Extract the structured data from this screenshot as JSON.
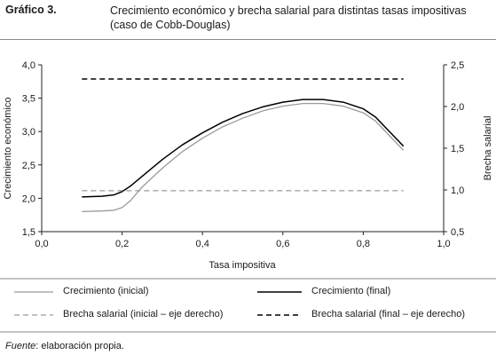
{
  "figure": {
    "label": "Gráfico 3.",
    "title_line1": "Crecimiento económico y brecha salarial para distintas tasas impositivas",
    "title_line2": "(caso de Cobb-Douglas)",
    "source_prefix": "Fuente",
    "source_text": ": elaboración propia."
  },
  "chart_data": {
    "type": "line",
    "xlabel": "Tasa impositiva",
    "ylabel_left": "Crecimiento económico",
    "ylabel_right": "Brecha salarial",
    "xlim": [
      0.0,
      1.0
    ],
    "ylim_left": [
      1.5,
      4.0
    ],
    "ylim_right": [
      0.5,
      2.5
    ],
    "x_ticks": [
      "0,0",
      "0,2",
      "0,4",
      "0,6",
      "0,8",
      "1,0"
    ],
    "y_ticks_left": [
      "1,5",
      "2,0",
      "2,5",
      "3,0",
      "3,5",
      "4,0"
    ],
    "y_ticks_right": [
      "0,5",
      "1,0",
      "1,5",
      "2,0",
      "2,5"
    ],
    "grid": false,
    "legend_position": "bottom",
    "series": [
      {
        "name": "Crecimiento (inicial)",
        "axis": "left",
        "style": "solid-gray",
        "color": "#9a9a9a",
        "x": [
          0.1,
          0.15,
          0.18,
          0.2,
          0.22,
          0.25,
          0.3,
          0.35,
          0.4,
          0.45,
          0.5,
          0.55,
          0.6,
          0.65,
          0.7,
          0.75,
          0.8,
          0.83,
          0.86,
          0.9
        ],
        "y": [
          1.8,
          1.81,
          1.82,
          1.86,
          1.96,
          2.17,
          2.45,
          2.7,
          2.9,
          3.07,
          3.2,
          3.31,
          3.38,
          3.42,
          3.42,
          3.38,
          3.28,
          3.16,
          2.97,
          2.72
        ]
      },
      {
        "name": "Crecimiento (final)",
        "axis": "left",
        "style": "solid-black",
        "color": "#000000",
        "x": [
          0.1,
          0.15,
          0.18,
          0.2,
          0.22,
          0.25,
          0.3,
          0.35,
          0.4,
          0.45,
          0.5,
          0.55,
          0.6,
          0.65,
          0.7,
          0.75,
          0.8,
          0.83,
          0.86,
          0.9
        ],
        "y": [
          2.02,
          2.03,
          2.05,
          2.1,
          2.18,
          2.33,
          2.58,
          2.8,
          2.98,
          3.14,
          3.27,
          3.37,
          3.44,
          3.48,
          3.48,
          3.44,
          3.34,
          3.22,
          3.03,
          2.78
        ]
      },
      {
        "name": "Brecha salarial (inicial – eje derecho)",
        "axis": "right",
        "style": "dashed-gray",
        "color": "#9a9a9a",
        "x": [
          0.1,
          0.9
        ],
        "y": [
          0.99,
          0.99
        ]
      },
      {
        "name": "Brecha salarial (final – eje derecho)",
        "axis": "right",
        "style": "dashed-black",
        "color": "#000000",
        "x": [
          0.1,
          0.9
        ],
        "y": [
          2.33,
          2.33
        ]
      }
    ]
  }
}
